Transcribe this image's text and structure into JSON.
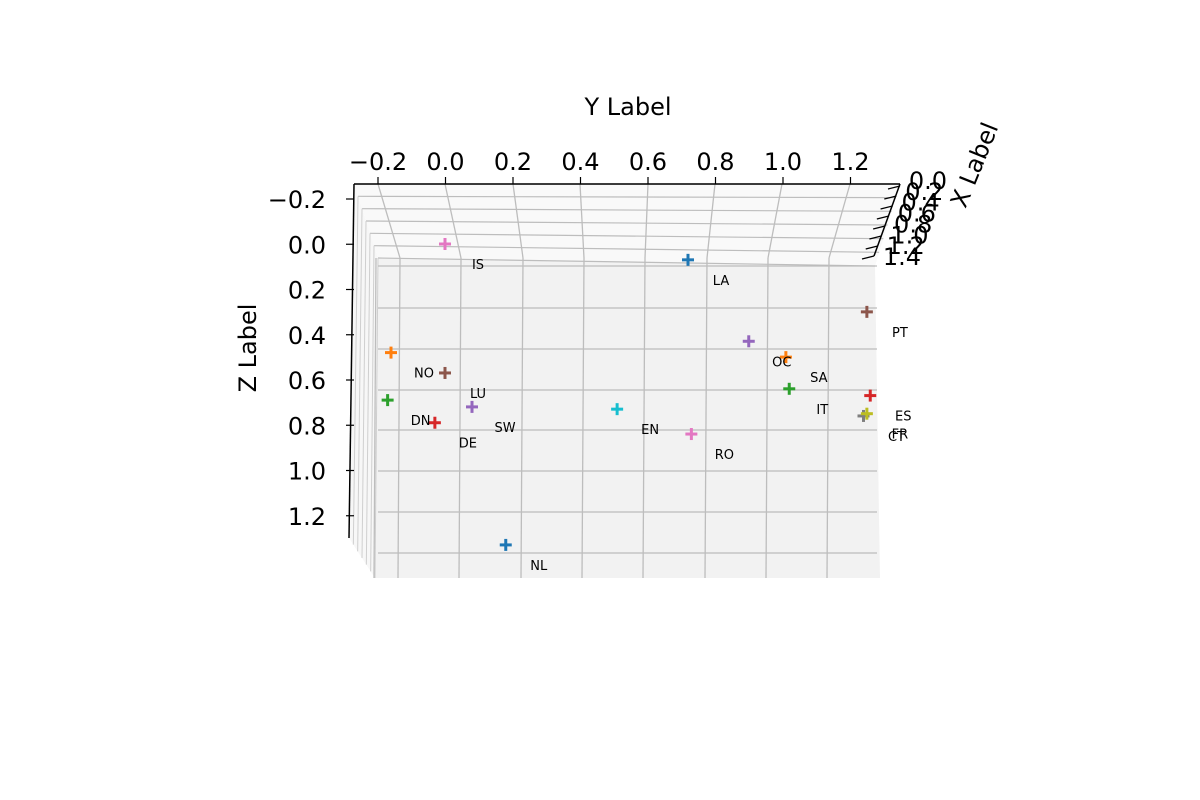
{
  "chart_data": {
    "type": "scatter",
    "xlabel": "X Label",
    "ylabel": "Y Label",
    "zlabel": "Z Label",
    "y_ticks": [
      "−0.2",
      "0.0",
      "0.2",
      "0.4",
      "0.6",
      "0.8",
      "1.0",
      "1.2"
    ],
    "z_ticks": [
      "−0.2",
      "0.0",
      "0.2",
      "0.4",
      "0.6",
      "0.8",
      "1.0",
      "1.2"
    ],
    "x_ticks": [
      "0.0",
      "0.2",
      "0.4",
      "0.6",
      "0.8",
      "1.0",
      "1.2",
      "1.4"
    ],
    "grid": true,
    "points": [
      {
        "label": "IS",
        "y": 0.0,
        "z": 0.0,
        "color": "#e377c2"
      },
      {
        "label": "LA",
        "y": 0.72,
        "z": 0.07,
        "color": "#1f77b4"
      },
      {
        "label": "PT",
        "y": 1.25,
        "z": 0.3,
        "color": "#8c564b"
      },
      {
        "label": "SA",
        "y": 1.01,
        "z": 0.5,
        "color": "#ff7f0e"
      },
      {
        "label": "IT",
        "y": 1.02,
        "z": 0.64,
        "color": "#2ca02c"
      },
      {
        "label": "CT",
        "y": 1.24,
        "z": 0.76,
        "color": "#7f7f7f"
      },
      {
        "label": "ES",
        "y": 1.26,
        "z": 0.67,
        "color": "#d62728"
      },
      {
        "label": "FR",
        "y": 1.25,
        "z": 0.75,
        "color": "#bcbd22"
      },
      {
        "label": "OC",
        "y": 0.9,
        "z": 0.43,
        "color": "#9467bd"
      },
      {
        "label": "EN",
        "y": 0.51,
        "z": 0.73,
        "color": "#17becf"
      },
      {
        "label": "RO",
        "y": 0.73,
        "z": 0.84,
        "color": "#e377c2"
      },
      {
        "label": "LU",
        "y": 0.0,
        "z": 0.57,
        "color": "#8c564b"
      },
      {
        "label": "SW",
        "y": 0.08,
        "z": 0.72,
        "color": "#9467bd"
      },
      {
        "label": "DE",
        "y": -0.03,
        "z": 0.79,
        "color": "#d62728"
      },
      {
        "label": "NO",
        "y": -0.16,
        "z": 0.48,
        "color": "#ff7f0e"
      },
      {
        "label": "DN",
        "y": -0.17,
        "z": 0.69,
        "color": "#2ca02c"
      },
      {
        "label": "NL",
        "y": 0.18,
        "z": 1.33,
        "color": "#1f77b4"
      }
    ]
  }
}
